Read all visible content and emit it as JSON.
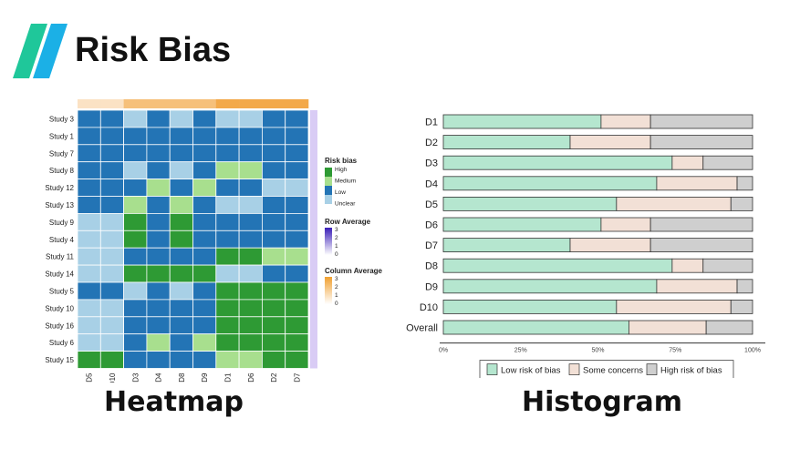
{
  "header": {
    "title": "Risk Bias",
    "logo_colors": [
      "#1fc79a",
      "#1bb0e6"
    ]
  },
  "captions": {
    "heatmap": "Heatmap",
    "histogram": "Histogram"
  },
  "chart_data": [
    {
      "type": "heatmap",
      "rows": [
        "Study 3",
        "Study 1",
        "Study 7",
        "Study 8",
        "Study 12",
        "Study 13",
        "Study 9",
        "Study 4",
        "Study 11",
        "Study 14",
        "Study 5",
        "Study 10",
        "Study 16",
        "Study 6",
        "Study 15"
      ],
      "columns": [
        "D5",
        "D10",
        "D3",
        "D4",
        "D8",
        "D9",
        "D1",
        "D6",
        "D2",
        "D7"
      ],
      "levels": [
        "Unclear",
        "Low",
        "Medium",
        "High"
      ],
      "level_colors": {
        "High": "#2e9a34",
        "Medium": "#a8df8e",
        "Low": "#2374b5",
        "Unclear": "#a8d0e6"
      },
      "values": [
        [
          "Low",
          "Low",
          "Unclear",
          "Low",
          "Unclear",
          "Low",
          "Unclear",
          "Unclear",
          "Low",
          "Low"
        ],
        [
          "Low",
          "Low",
          "Low",
          "Low",
          "Low",
          "Low",
          "Low",
          "Low",
          "Low",
          "Low"
        ],
        [
          "Low",
          "Low",
          "Low",
          "Low",
          "Low",
          "Low",
          "Low",
          "Low",
          "Low",
          "Low"
        ],
        [
          "Low",
          "Low",
          "Unclear",
          "Low",
          "Unclear",
          "Low",
          "Medium",
          "Medium",
          "Low",
          "Low"
        ],
        [
          "Low",
          "Low",
          "Low",
          "Medium",
          "Low",
          "Medium",
          "Low",
          "Low",
          "Unclear",
          "Unclear"
        ],
        [
          "Low",
          "Low",
          "Medium",
          "Low",
          "Medium",
          "Low",
          "Unclear",
          "Unclear",
          "Low",
          "Low"
        ],
        [
          "Unclear",
          "Unclear",
          "High",
          "Low",
          "High",
          "Low",
          "Low",
          "Low",
          "Low",
          "Low"
        ],
        [
          "Unclear",
          "Unclear",
          "High",
          "Low",
          "High",
          "Low",
          "Low",
          "Low",
          "Low",
          "Low"
        ],
        [
          "Unclear",
          "Unclear",
          "Low",
          "Low",
          "Low",
          "Low",
          "High",
          "High",
          "Medium",
          "Medium"
        ],
        [
          "Unclear",
          "Unclear",
          "High",
          "High",
          "High",
          "High",
          "Unclear",
          "Unclear",
          "Low",
          "Low"
        ],
        [
          "Low",
          "Low",
          "Unclear",
          "Low",
          "Unclear",
          "Low",
          "High",
          "High",
          "High",
          "High"
        ],
        [
          "Unclear",
          "Unclear",
          "Low",
          "Low",
          "Low",
          "Low",
          "High",
          "High",
          "High",
          "High"
        ],
        [
          "Unclear",
          "Unclear",
          "Low",
          "Low",
          "Low",
          "Low",
          "High",
          "High",
          "High",
          "High"
        ],
        [
          "Unclear",
          "Unclear",
          "Low",
          "Medium",
          "Low",
          "Medium",
          "High",
          "High",
          "High",
          "High"
        ],
        [
          "High",
          "High",
          "Low",
          "Low",
          "Low",
          "Low",
          "Medium",
          "Medium",
          "High",
          "High"
        ]
      ],
      "column_average_colors": [
        "#fbe2c4",
        "#fbe2c4",
        "#f6c07a",
        "#f6c07a",
        "#f6c07a",
        "#f6c07a",
        "#f3a94a",
        "#f3a94a",
        "#f3a94a",
        "#f3a94a"
      ],
      "row_average_color": "#d9ccf5",
      "legend": {
        "risk_bias": {
          "title": "Risk bias",
          "labels": [
            "High",
            "Medium",
            "Low",
            "Unclear"
          ]
        },
        "row_average": {
          "title": "Row Average",
          "ticks": [
            "3",
            "2",
            "1",
            "0"
          ],
          "colors": [
            "#3b1fb8",
            "#ffffff"
          ]
        },
        "column_average": {
          "title": "Column Average",
          "ticks": [
            "3",
            "2",
            "1",
            "0"
          ],
          "colors": [
            "#f0a030",
            "#ffffff"
          ]
        }
      }
    },
    {
      "type": "bar",
      "orientation": "horizontal",
      "stacked": true,
      "categories": [
        "D1",
        "D2",
        "D3",
        "D4",
        "D5",
        "D6",
        "D7",
        "D8",
        "D9",
        "D10",
        "Overall"
      ],
      "series": [
        {
          "name": "Low risk of bias",
          "color": "#b5e6cf",
          "values": [
            51,
            41,
            74,
            69,
            56,
            51,
            41,
            74,
            69,
            56,
            60
          ]
        },
        {
          "name": "Some concerns",
          "color": "#f2e0d6",
          "values": [
            16,
            26,
            10,
            26,
            37,
            16,
            26,
            10,
            26,
            37,
            25
          ]
        },
        {
          "name": "High risk of bias",
          "color": "#cfcfcf",
          "values": [
            33,
            33,
            16,
            5,
            7,
            33,
            33,
            16,
            5,
            7,
            15
          ]
        }
      ],
      "xlim": [
        0,
        100
      ],
      "x_ticks": [
        "0%",
        "25%",
        "50%",
        "75%",
        "100%"
      ],
      "legend_position": "bottom"
    }
  ]
}
